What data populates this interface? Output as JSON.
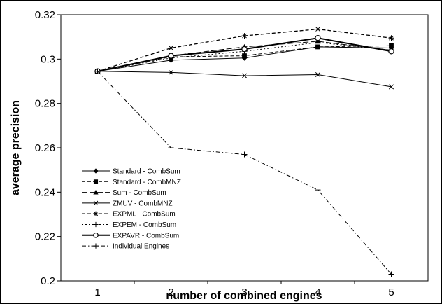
{
  "chart_data": {
    "type": "line",
    "title": "",
    "xlabel": "number of combined engines",
    "ylabel": "average precision",
    "x": [
      1,
      2,
      3,
      4,
      5
    ],
    "xlim": [
      0.5,
      5.5
    ],
    "ylim": [
      0.2,
      0.32
    ],
    "xticks": [
      "1",
      "2",
      "3",
      "4",
      "5"
    ],
    "yticks": [
      "0.2",
      "0.22",
      "0.24",
      "0.26",
      "0.28",
      "0.3",
      "0.32"
    ],
    "grid": false,
    "legend_position": "bottom-left",
    "series": [
      {
        "name": "Standard - CombSum",
        "values": [
          0.2945,
          0.2995,
          0.3005,
          0.3055,
          0.305
        ],
        "marker": "diamond",
        "line": "solid",
        "width": 1
      },
      {
        "name": "Standard - CombMNZ",
        "values": [
          0.2945,
          0.301,
          0.3015,
          0.3055,
          0.306
        ],
        "marker": "square",
        "line": "dash",
        "width": 1
      },
      {
        "name": "Sum - CombSum",
        "values": [
          0.2945,
          0.3015,
          0.3055,
          0.308,
          0.304
        ],
        "marker": "triangle",
        "line": "longdash",
        "width": 1
      },
      {
        "name": "ZMUV - CombMNZ",
        "values": [
          0.2945,
          0.294,
          0.2925,
          0.293,
          0.2875
        ],
        "marker": "x",
        "line": "solid",
        "width": 1
      },
      {
        "name": "EXPML - CombSum",
        "values": [
          0.2945,
          0.305,
          0.3105,
          0.3135,
          0.3095
        ],
        "marker": "star",
        "line": "dash",
        "width": 1.3
      },
      {
        "name": "EXPEM - CombSum",
        "values": [
          0.2945,
          0.3005,
          0.3035,
          0.3075,
          0.304
        ],
        "marker": "plus",
        "line": "dot",
        "width": 1
      },
      {
        "name": "EXPAVR - CombSum",
        "values": [
          0.2945,
          0.3015,
          0.3045,
          0.3095,
          0.3035
        ],
        "marker": "circle",
        "line": "solid",
        "width": 2
      },
      {
        "name": "Individual Engines",
        "values": [
          0.2945,
          0.26,
          0.257,
          0.241,
          0.203
        ],
        "marker": "plus",
        "line": "dashdot",
        "width": 1
      }
    ]
  }
}
